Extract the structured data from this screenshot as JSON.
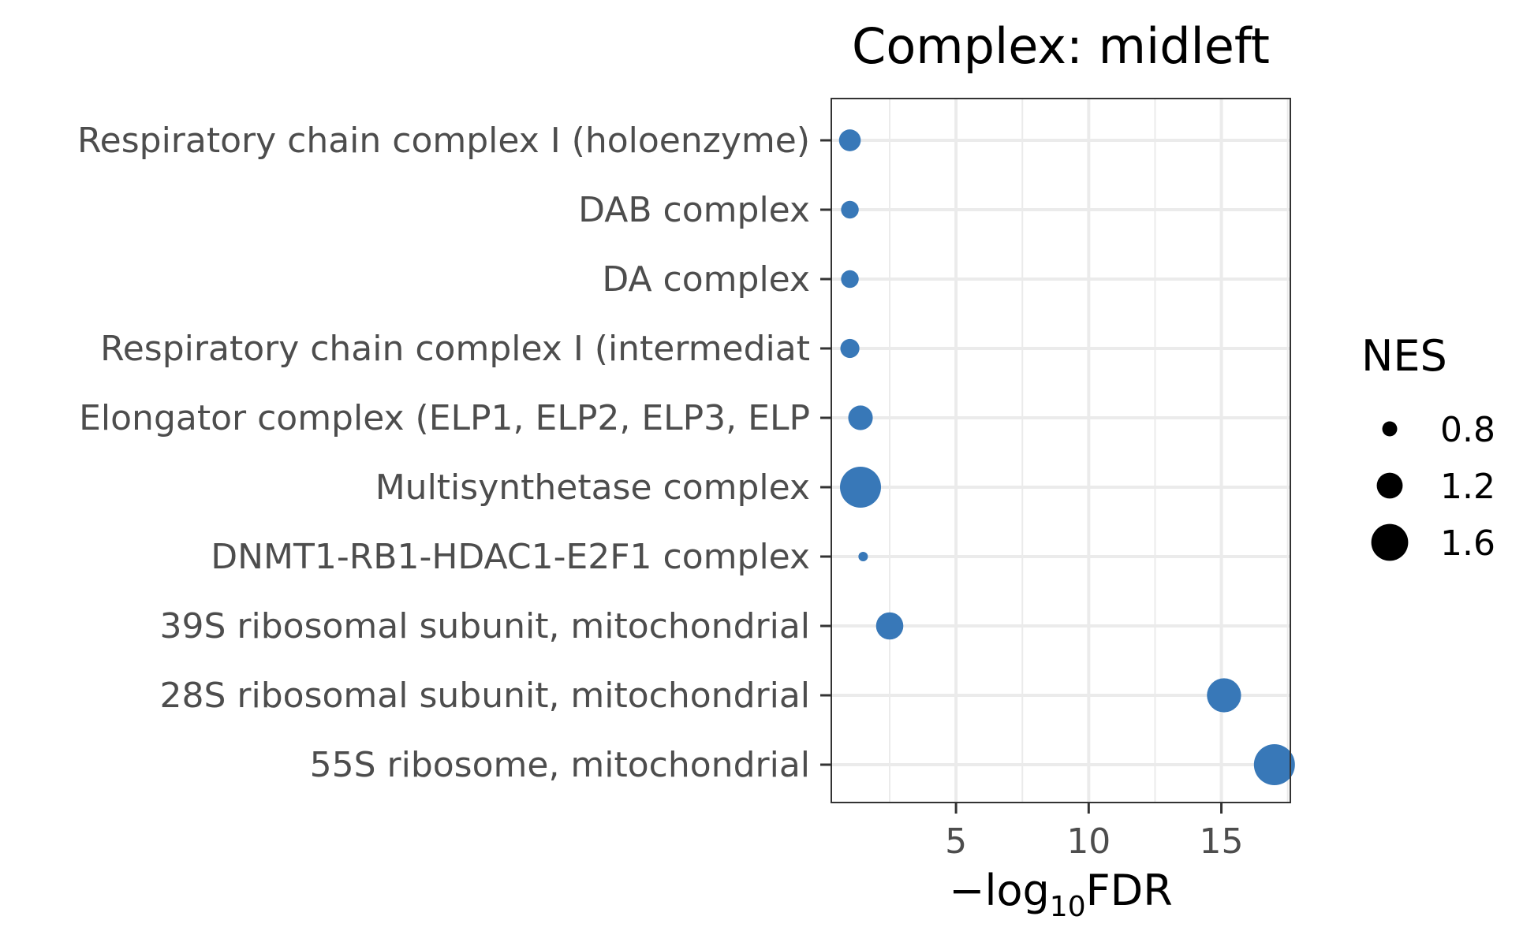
{
  "chart_data": {
    "type": "scatter",
    "title": "Complex: midleft",
    "xlabel_prefix": "−log",
    "xlabel_subscript": "10",
    "xlabel_suffix": "FDR",
    "ylabel": "",
    "xlim": [
      0.3,
      17.6
    ],
    "xticks": [
      5,
      10,
      15
    ],
    "xtick_labels": [
      "5",
      "10",
      "15"
    ],
    "grid": true,
    "point_color": "#3878b8",
    "categories": [
      "Respiratory chain complex I (holoenzyme)",
      "DAB complex",
      "DA complex",
      "Respiratory chain complex I (intermediat",
      "Elongator complex (ELP1, ELP2, ELP3, ELP",
      "Multisynthetase complex",
      "DNMT1-RB1-HDAC1-E2F1 complex",
      "39S ribosomal subunit, mitochondrial",
      "28S ribosomal subunit, mitochondrial",
      "55S ribosome, mitochondrial"
    ],
    "points": [
      {
        "term": "Respiratory chain complex I (holoenzyme)",
        "neg_log10_fdr": 1.0,
        "nes": 1.05
      },
      {
        "term": "DAB complex",
        "neg_log10_fdr": 1.0,
        "nes": 0.9
      },
      {
        "term": "DA complex",
        "neg_log10_fdr": 1.0,
        "nes": 0.9
      },
      {
        "term": "Respiratory chain complex I (intermediat",
        "neg_log10_fdr": 1.0,
        "nes": 0.95
      },
      {
        "term": "Elongator complex (ELP1, ELP2, ELP3, ELP",
        "neg_log10_fdr": 1.4,
        "nes": 1.15
      },
      {
        "term": "Multisynthetase complex",
        "neg_log10_fdr": 1.4,
        "nes": 1.75
      },
      {
        "term": "DNMT1-RB1-HDAC1-E2F1 complex",
        "neg_log10_fdr": 1.5,
        "nes": 0.6
      },
      {
        "term": "39S ribosomal subunit, mitochondrial",
        "neg_log10_fdr": 2.5,
        "nes": 1.25
      },
      {
        "term": "28S ribosomal subunit, mitochondrial",
        "neg_log10_fdr": 15.1,
        "nes": 1.5
      },
      {
        "term": "55S ribosome, mitochondrial",
        "neg_log10_fdr": 17.0,
        "nes": 1.75
      }
    ],
    "legend": {
      "title": "NES",
      "position": "right",
      "entries": [
        {
          "label": "0.8",
          "nes": 0.8
        },
        {
          "label": "1.2",
          "nes": 1.2
        },
        {
          "label": "1.6",
          "nes": 1.6
        }
      ]
    }
  }
}
